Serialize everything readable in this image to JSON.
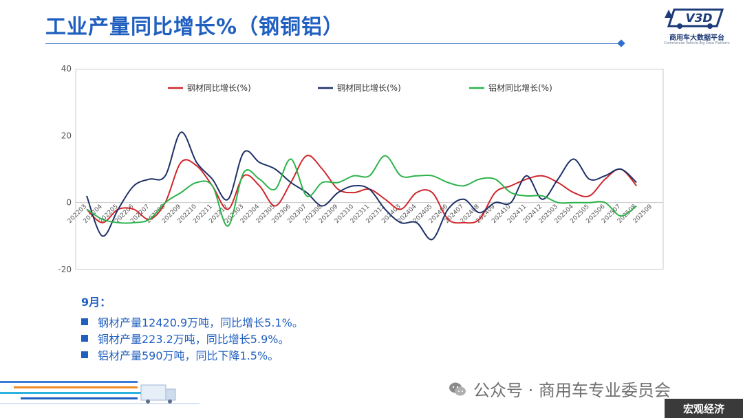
{
  "header": {
    "title": "工业产量同比增长%（钢铜铝）",
    "logo_text": "商用车大数据平台",
    "logo_subtext": "Commercial Vehicle Big Data Platform",
    "logo_mark": "V3D"
  },
  "chart_data": {
    "type": "line",
    "ylim": [
      -20,
      40
    ],
    "yticks": [
      "40",
      "20",
      "0",
      "-20"
    ],
    "x": [
      "202203",
      "202204",
      "202205",
      "202206",
      "202207",
      "202208",
      "202209",
      "202210",
      "202211",
      "202212",
      "202303",
      "202304",
      "202305",
      "202306",
      "202307",
      "202308",
      "202309",
      "202310",
      "202311",
      "202312",
      "202403",
      "202404",
      "202405",
      "202406",
      "202407",
      "202408",
      "202409",
      "202410",
      "202411",
      "202412",
      "202503",
      "202504",
      "202505",
      "202506",
      "202507",
      "202508",
      "202509"
    ],
    "legend_position": "top",
    "grid": false,
    "series": [
      {
        "name": "钢材同比增长(%)",
        "color": "#d0262b",
        "values": [
          -2,
          -6,
          -2,
          -2,
          -5,
          0,
          12,
          11,
          5,
          -2,
          8,
          5,
          -1,
          6,
          14,
          10,
          4,
          3,
          4,
          1,
          -2,
          3,
          3,
          -5,
          -6,
          -5,
          3,
          5,
          7,
          8,
          6,
          3,
          2,
          7,
          10,
          5,
          null
        ]
      },
      {
        "name": "铜材同比增长(%)",
        "color": "#1c2f66",
        "values": [
          2,
          -10,
          -2,
          5,
          7,
          8,
          21,
          12,
          7,
          1,
          15,
          12,
          10,
          6,
          3,
          -1,
          3,
          5,
          4,
          -2,
          -6,
          -6,
          -11,
          -2,
          1,
          -3,
          0,
          0,
          8,
          1,
          7,
          13,
          7,
          8,
          10,
          6,
          null
        ]
      },
      {
        "name": "铝材同比增长(%)",
        "color": "#2bb34a",
        "values": [
          -2,
          -5,
          -6,
          -6,
          -5,
          0,
          3,
          6,
          5,
          -7,
          9,
          7,
          4,
          13,
          2,
          6,
          6,
          8,
          8,
          14,
          8,
          8,
          8,
          6,
          5,
          7,
          7,
          3,
          2,
          2,
          0,
          0,
          0,
          0,
          -4,
          -1,
          null
        ]
      }
    ]
  },
  "notes": {
    "month": "9月：",
    "items": [
      "钢材产量12420.9万吨，同比增长5.1%。",
      "铜材产量223.2万吨，同比增长5.9%。",
      "铝材产量590万吨，同比下降1.5%。"
    ]
  },
  "footer": {
    "brand": "公众号 · 商用车专业委员会",
    "tag": "宏观经济"
  },
  "colors": {
    "accent": "#1f5fbf",
    "axis": "#c8c8c8",
    "footer_tag_bg": "#3a3a3a"
  }
}
